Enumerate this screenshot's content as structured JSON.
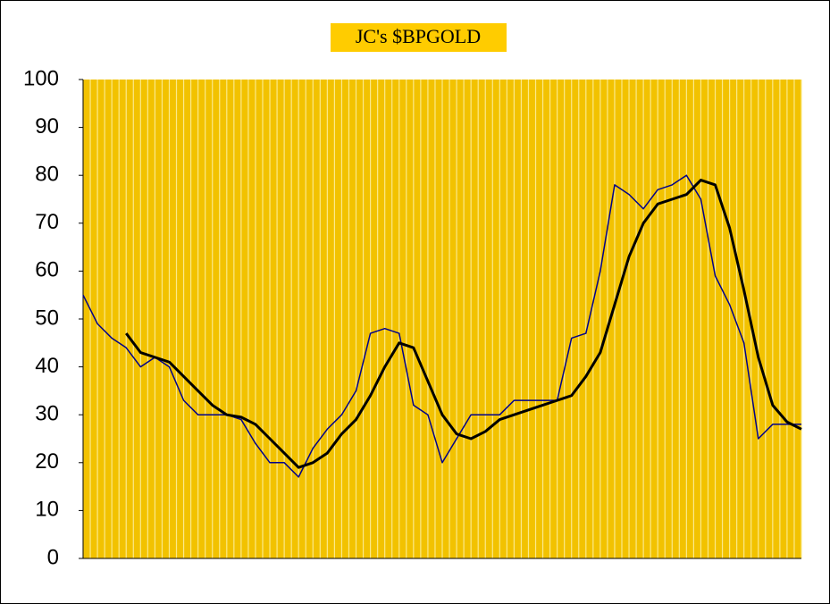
{
  "chart_data": {
    "type": "line",
    "title": "JC's $BPGOLD",
    "categories": [
      null,
      null,
      null,
      null,
      null,
      null,
      null,
      null,
      null,
      null,
      null,
      null,
      null,
      null,
      null,
      null,
      null,
      null,
      null,
      null,
      null,
      null,
      null,
      null,
      null,
      null,
      null,
      null,
      null,
      null,
      null,
      null,
      null,
      null,
      null,
      null,
      null,
      null,
      null,
      null,
      null,
      null,
      null,
      null,
      null,
      null,
      null,
      null,
      null,
      null,
      null
    ],
    "series": [
      {
        "color": "#00008b",
        "width": 1.5,
        "values": [
          55,
          49,
          46,
          44,
          40,
          42,
          40,
          33,
          30,
          30,
          30,
          29,
          24,
          20,
          20,
          17,
          23,
          27,
          30,
          35,
          47,
          48,
          47,
          32,
          30,
          20,
          25,
          30,
          30,
          30,
          33,
          33,
          33,
          33,
          46,
          47,
          60,
          78,
          76,
          73,
          77,
          78,
          80,
          75,
          59,
          53,
          45,
          25,
          28,
          28,
          28
        ]
      },
      {
        "color": "#000000",
        "width": 3,
        "values": [
          null,
          null,
          null,
          47,
          43,
          42,
          41,
          38,
          35,
          32,
          30,
          29.5,
          28,
          25,
          22,
          19,
          20,
          22,
          26,
          29,
          34,
          40,
          45,
          44,
          37,
          30,
          26,
          25,
          26.5,
          29,
          30,
          31,
          32,
          33,
          34,
          38,
          43,
          53,
          63,
          70,
          74,
          75,
          76,
          79,
          78,
          69,
          56,
          42,
          32,
          28.5,
          27
        ]
      }
    ],
    "ylim": [
      0,
      100
    ],
    "yticks": [
      0,
      10,
      20,
      30,
      40,
      50,
      60,
      70,
      80,
      90,
      100
    ],
    "grid": true,
    "plot_color": "#f2c200"
  }
}
